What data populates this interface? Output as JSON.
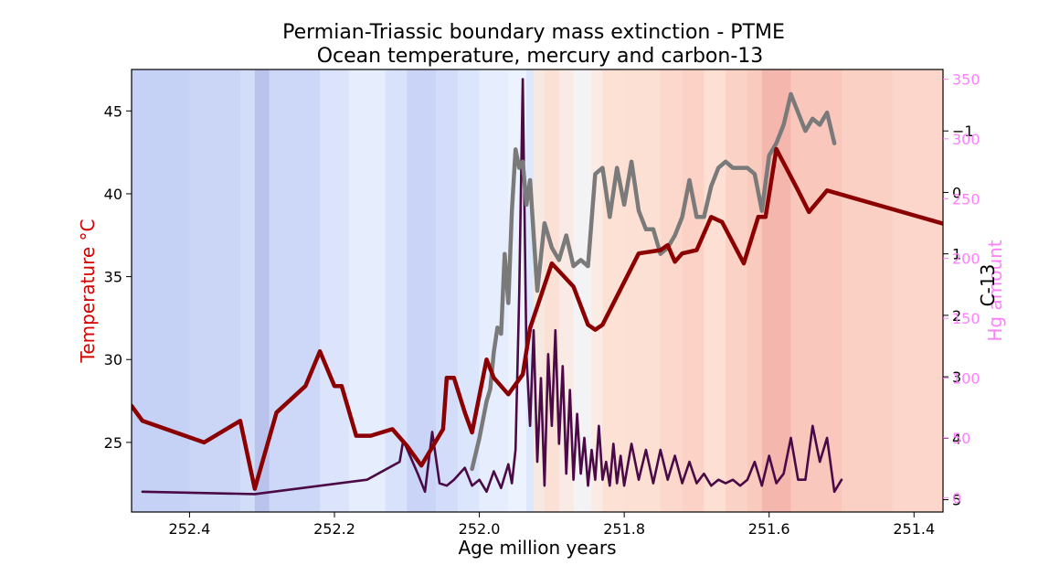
{
  "chart_data": {
    "type": "line",
    "title": "Permian-Triassic boundary mass extinction - PTME",
    "subtitle": "Ocean temperature, mercury and carbon-13",
    "xlabel": "Age million years",
    "xlim": [
      252.48,
      251.36
    ],
    "x_reversed": true,
    "x_ticks": [
      "252.4",
      "252.2",
      "252.0",
      "251.8",
      "251.6",
      "251.4"
    ],
    "background": "temperature color band: blue (cooler, older) to red (warmer, younger)",
    "grid": false,
    "axes": {
      "temperature": {
        "label": "Temperature  °C",
        "color": "#d40000",
        "side": "left",
        "ylim": [
          20.8,
          47.5
        ],
        "ticks": [
          "25",
          "30",
          "35",
          "40",
          "45"
        ]
      },
      "c13": {
        "label": "C-13",
        "color": "#000000",
        "side": "right",
        "inverted": true,
        "ylim": [
          5.2,
          -2.0
        ],
        "ticks": [
          "-1",
          "0",
          "1",
          "2",
          "3",
          "4",
          "5"
        ]
      },
      "hg": {
        "label": "Hg amount",
        "color": "#ff80ff",
        "side": "right",
        "ylim": [
          -12,
          358
        ],
        "ticks": [
          "0",
          "50",
          "100",
          "150",
          "200",
          "250",
          "300",
          "350"
        ]
      }
    },
    "series": [
      {
        "axis": "temperature",
        "color": "#8b0000",
        "x": [
          252.48,
          252.465,
          252.38,
          252.33,
          252.31,
          252.28,
          252.24,
          252.22,
          252.2,
          252.19,
          252.17,
          252.15,
          252.12,
          252.1,
          252.08,
          252.05,
          252.045,
          252.035,
          252.02,
          252.01,
          251.99,
          251.98,
          251.96,
          251.94,
          251.93,
          251.9,
          251.87,
          251.85,
          251.84,
          251.83,
          251.78,
          251.75,
          251.74,
          251.73,
          251.72,
          251.7,
          251.68,
          251.665,
          251.635,
          251.615,
          251.605,
          251.59,
          251.56,
          251.545,
          251.52,
          251.36
        ],
        "y": [
          27.2,
          26.3,
          25.0,
          26.3,
          22.2,
          26.8,
          28.4,
          30.5,
          28.4,
          28.4,
          25.4,
          25.4,
          25.8,
          24.8,
          23.6,
          25.8,
          28.9,
          28.9,
          26.8,
          25.6,
          30.0,
          28.9,
          27.9,
          29.1,
          31.9,
          35.8,
          34.4,
          32.1,
          31.8,
          32.1,
          36.4,
          36.6,
          36.9,
          35.9,
          36.4,
          36.6,
          38.6,
          38.3,
          35.8,
          38.6,
          38.6,
          42.7,
          40.2,
          38.9,
          40.2,
          38.2
        ]
      },
      {
        "axis": "c13",
        "color": "#7a7a7a",
        "x": [
          252.01,
          252.0,
          251.99,
          251.985,
          251.98,
          251.975,
          251.97,
          251.965,
          251.96,
          251.955,
          251.95,
          251.945,
          251.94,
          251.935,
          251.93,
          251.92,
          251.91,
          251.9,
          251.89,
          251.88,
          251.87,
          251.86,
          251.85,
          251.84,
          251.83,
          251.82,
          251.81,
          251.8,
          251.79,
          251.78,
          251.77,
          251.76,
          251.75,
          251.74,
          251.73,
          251.72,
          251.71,
          251.7,
          251.69,
          251.68,
          251.67,
          251.66,
          251.65,
          251.64,
          251.63,
          251.62,
          251.61,
          251.6,
          251.59,
          251.58,
          251.57,
          251.56,
          251.55,
          251.54,
          251.53,
          251.52,
          251.51
        ],
        "y": [
          4.5,
          4.0,
          3.4,
          3.2,
          2.6,
          2.2,
          2.3,
          1.0,
          1.8,
          0.3,
          -0.7,
          -0.4,
          -0.5,
          0.2,
          -0.2,
          1.6,
          0.5,
          0.9,
          1.1,
          0.7,
          1.2,
          1.1,
          1.2,
          -0.3,
          -0.4,
          0.4,
          -0.4,
          0.2,
          -0.5,
          0.3,
          0.6,
          0.6,
          1.0,
          0.9,
          0.7,
          0.4,
          -0.2,
          0.4,
          0.4,
          -0.1,
          -0.4,
          -0.5,
          -0.4,
          -0.4,
          -0.4,
          -0.3,
          0.3,
          -0.6,
          -0.8,
          -1.1,
          -1.6,
          -1.3,
          -1.0,
          -1.2,
          -1.1,
          -1.3,
          -0.8
        ]
      },
      {
        "axis": "hg",
        "color": "#4a0a45",
        "x": [
          252.465,
          252.31,
          252.155,
          252.11,
          252.105,
          252.085,
          252.075,
          252.065,
          252.055,
          252.045,
          252.035,
          252.02,
          252.01,
          252.0,
          251.99,
          251.98,
          251.97,
          251.96,
          251.955,
          251.95,
          251.945,
          251.94,
          251.935,
          251.93,
          251.925,
          251.92,
          251.915,
          251.91,
          251.905,
          251.9,
          251.895,
          251.89,
          251.885,
          251.88,
          251.875,
          251.87,
          251.865,
          251.86,
          251.855,
          251.85,
          251.845,
          251.84,
          251.835,
          251.83,
          251.825,
          251.82,
          251.815,
          251.81,
          251.805,
          251.8,
          251.79,
          251.78,
          251.77,
          251.76,
          251.75,
          251.74,
          251.73,
          251.72,
          251.71,
          251.7,
          251.69,
          251.68,
          251.67,
          251.66,
          251.65,
          251.64,
          251.63,
          251.62,
          251.61,
          251.6,
          251.59,
          251.58,
          251.57,
          251.56,
          251.55,
          251.54,
          251.53,
          251.52,
          251.51,
          251.5
        ],
        "y": [
          5,
          3,
          15,
          30,
          48,
          20,
          5,
          55,
          12,
          10,
          15,
          25,
          10,
          15,
          5,
          22,
          8,
          28,
          12,
          40,
          170,
          350,
          120,
          60,
          140,
          30,
          100,
          10,
          120,
          60,
          140,
          45,
          110,
          20,
          90,
          15,
          70,
          20,
          50,
          10,
          40,
          15,
          60,
          15,
          30,
          10,
          45,
          12,
          35,
          10,
          45,
          15,
          40,
          12,
          40,
          15,
          35,
          12,
          30,
          12,
          20,
          10,
          15,
          12,
          15,
          10,
          15,
          30,
          10,
          35,
          12,
          20,
          50,
          15,
          15,
          60,
          30,
          50,
          5,
          15
        ]
      }
    ]
  }
}
